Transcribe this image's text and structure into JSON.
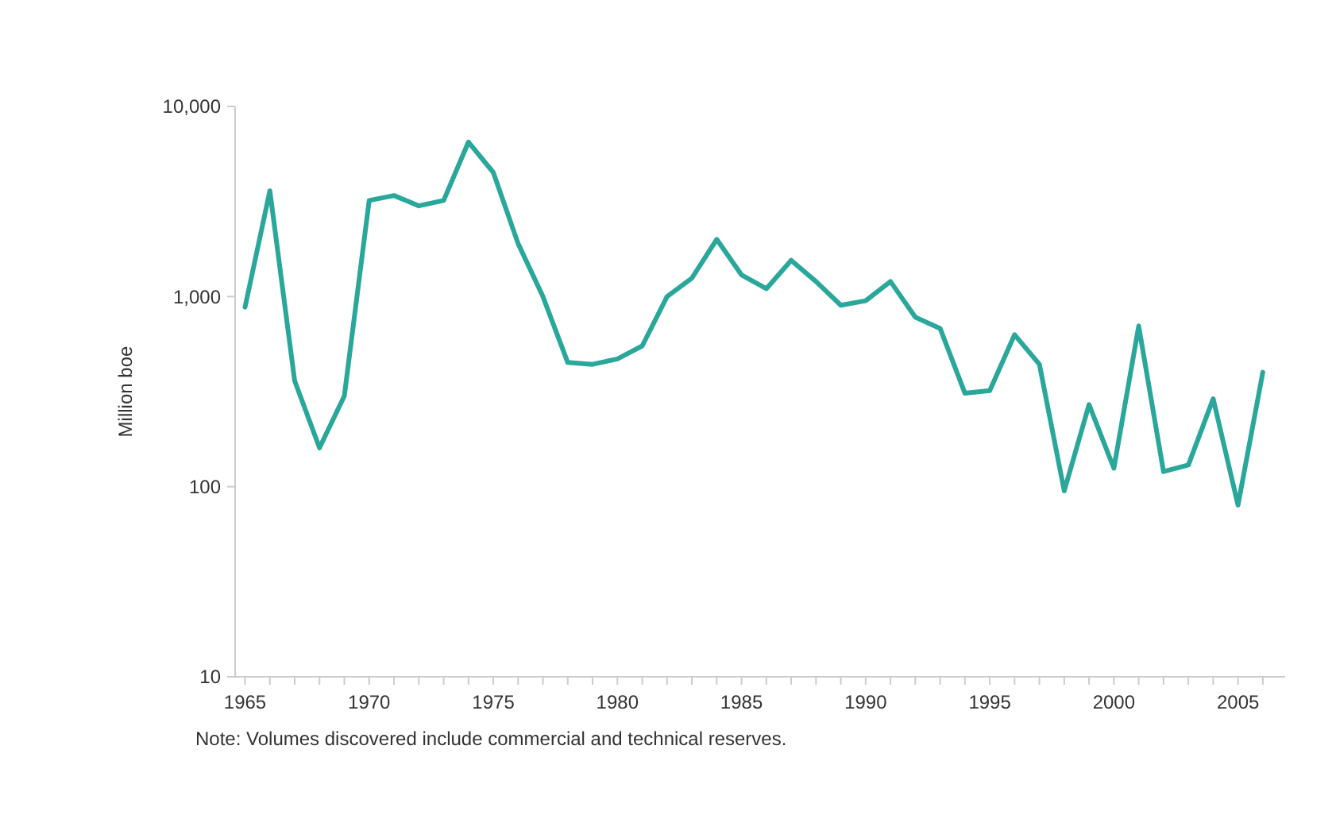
{
  "chart_data": {
    "type": "line",
    "ylabel": "Million boe",
    "log": true,
    "x": [
      1965,
      1966,
      1967,
      1968,
      1969,
      1970,
      1971,
      1972,
      1973,
      1974,
      1975,
      1976,
      1977,
      1978,
      1979,
      1980,
      1981,
      1982,
      1983,
      1984,
      1985,
      1986,
      1987,
      1988,
      1989,
      1990,
      1991,
      1992,
      1993,
      1994,
      1995,
      1996,
      1997,
      1998,
      1999,
      2000,
      2001,
      2002,
      2003,
      2004,
      2005,
      2006
    ],
    "series": [
      {
        "color": "#2aa79b",
        "values": [
          880,
          3600,
          360,
          160,
          300,
          3200,
          3400,
          3000,
          3200,
          6500,
          4500,
          1900,
          1000,
          450,
          440,
          470,
          550,
          1000,
          1250,
          2000,
          1300,
          1100,
          1550,
          1200,
          900,
          950,
          1200,
          780,
          680,
          310,
          320,
          630,
          440,
          95,
          270,
          125,
          700,
          120,
          130,
          290,
          80,
          400
        ]
      }
    ],
    "xlim": [
      1964.6,
      2006.9
    ],
    "xticks": [
      1965,
      {
        "value": 1966,
        "label": null
      },
      {
        "value": 1967,
        "label": null
      },
      {
        "value": 1968,
        "label": null
      },
      {
        "value": 1969,
        "label": null
      },
      1970,
      {
        "value": 1971,
        "label": null
      },
      {
        "value": 1972,
        "label": null
      },
      {
        "value": 1973,
        "label": null
      },
      {
        "value": 1974,
        "label": null
      },
      1975,
      {
        "value": 1976,
        "label": null
      },
      {
        "value": 1977,
        "label": null
      },
      {
        "value": 1978,
        "label": null
      },
      {
        "value": 1979,
        "label": null
      },
      1980,
      {
        "value": 1981,
        "label": null
      },
      {
        "value": 1982,
        "label": null
      },
      {
        "value": 1983,
        "label": null
      },
      {
        "value": 1984,
        "label": null
      },
      1985,
      {
        "value": 1986,
        "label": null
      },
      {
        "value": 1987,
        "label": null
      },
      {
        "value": 1988,
        "label": null
      },
      {
        "value": 1989,
        "label": null
      },
      1990,
      {
        "value": 1991,
        "label": null
      },
      {
        "value": 1992,
        "label": null
      },
      {
        "value": 1993,
        "label": null
      },
      {
        "value": 1994,
        "label": null
      },
      1995,
      {
        "value": 1996,
        "label": null
      },
      {
        "value": 1997,
        "label": null
      },
      {
        "value": 1998,
        "label": null
      },
      {
        "value": 1999,
        "label": null
      },
      2000,
      {
        "value": 2001,
        "label": null
      },
      {
        "value": 2002,
        "label": null
      },
      {
        "value": 2003,
        "label": null
      },
      {
        "value": 2004,
        "label": null
      },
      2005,
      {
        "value": 2006,
        "label": null
      }
    ],
    "ylim": [
      10,
      10000
    ],
    "yticks": [
      {
        "value": 10,
        "label": "10"
      },
      {
        "value": 100,
        "label": "100"
      },
      {
        "value": 1000,
        "label": "1,000"
      },
      {
        "value": 10000,
        "label": "10,000"
      }
    ],
    "grid": false,
    "marker": "none",
    "line_style": "solid",
    "annotations": [
      "Note: Volumes discovered include commercial and technical reserves."
    ]
  }
}
